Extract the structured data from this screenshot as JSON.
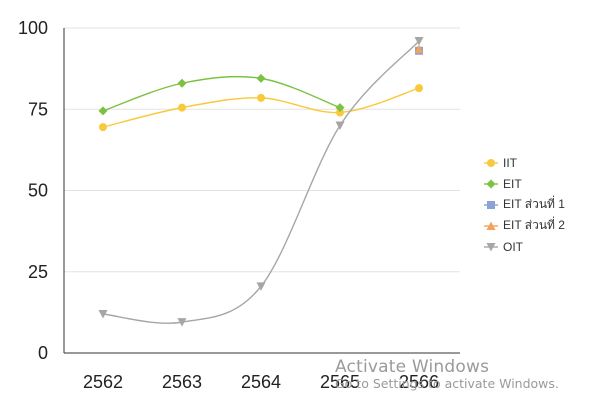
{
  "chart_data": {
    "type": "line",
    "title": "",
    "xlabel": "",
    "ylabel": "",
    "categories": [
      "2562",
      "2563",
      "2564",
      "2565",
      "2566"
    ],
    "ylim": [
      0,
      100
    ],
    "yticks": [
      0,
      25,
      50,
      75,
      100
    ],
    "grid": true,
    "legend_position": "right",
    "series": [
      {
        "name": "IIT",
        "color": "#f9c93c",
        "marker": "circle",
        "values": [
          69.5,
          75.5,
          78.5,
          74,
          81.5
        ]
      },
      {
        "name": "EIT",
        "color": "#7dc142",
        "marker": "diamond",
        "values": [
          74.5,
          83,
          84.5,
          75.5,
          null
        ]
      },
      {
        "name": "EIT ส่วนที่ 1",
        "color": "#8aa2d6",
        "marker": "square",
        "values": [
          null,
          null,
          null,
          null,
          93
        ]
      },
      {
        "name": "EIT ส่วนที่ 2",
        "color": "#f3a15d",
        "marker": "triangle",
        "values": [
          null,
          null,
          null,
          null,
          93.5
        ]
      },
      {
        "name": "OIT",
        "color": "#a6a6a6",
        "marker": "triangle-down",
        "values": [
          12,
          9.5,
          20.5,
          70,
          96
        ]
      }
    ]
  },
  "watermark": {
    "line1": "Activate Windows",
    "line2": "Go to Settings to activate Windows."
  }
}
